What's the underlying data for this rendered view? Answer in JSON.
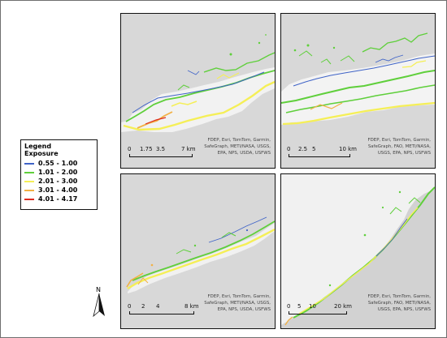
{
  "legend": {
    "title": "Legend",
    "subtitle": "Exposure",
    "items": [
      {
        "label": "0.55 - 1.00",
        "color": "#3f63c7"
      },
      {
        "label": "1.01 - 2.00",
        "color": "#5fcf3b"
      },
      {
        "label": "2.01 - 3.00",
        "color": "#f5ef57"
      },
      {
        "label": "3.01 - 4.00",
        "color": "#f2b145"
      },
      {
        "label": "4.01 - 4.17",
        "color": "#dd2b1f"
      }
    ]
  },
  "maps": [
    {
      "scale": {
        "ticks": [
          "0",
          "1.75",
          "3.5",
          "7 km"
        ]
      },
      "attribution": [
        "FDEP, Esri, TomTom, Garmin,",
        "SafeGraph, METI/NASA, USGS,",
        "EPA, NPS, USDA, USFWS"
      ]
    },
    {
      "scale": {
        "ticks": [
          "0",
          "2.5",
          "5",
          "10 km"
        ]
      },
      "attribution": [
        "FDEP, Esri, TomTom, Garmin,",
        "SafeGraph, FAO, METI/NASA,",
        "USGS, EPA, NPS, USFWS"
      ]
    },
    {
      "scale": {
        "ticks": [
          "0",
          "2",
          "4",
          "8 km"
        ]
      },
      "attribution": [
        "FDEP, Esri, TomTom, Garmin,",
        "SafeGraph, METI/NASA, USGS,",
        "EPA, NPS, USDA, USFWS"
      ]
    },
    {
      "scale": {
        "ticks": [
          "0",
          "5",
          "10",
          "20 km"
        ]
      },
      "attribution": [
        "FDEP, Esri, TomTom, Garmin,",
        "SafeGraph, FAO, METI/NASA,",
        "USGS, EPA, NPS, USFWS"
      ]
    }
  ],
  "north_arrow": {
    "label": "N"
  }
}
